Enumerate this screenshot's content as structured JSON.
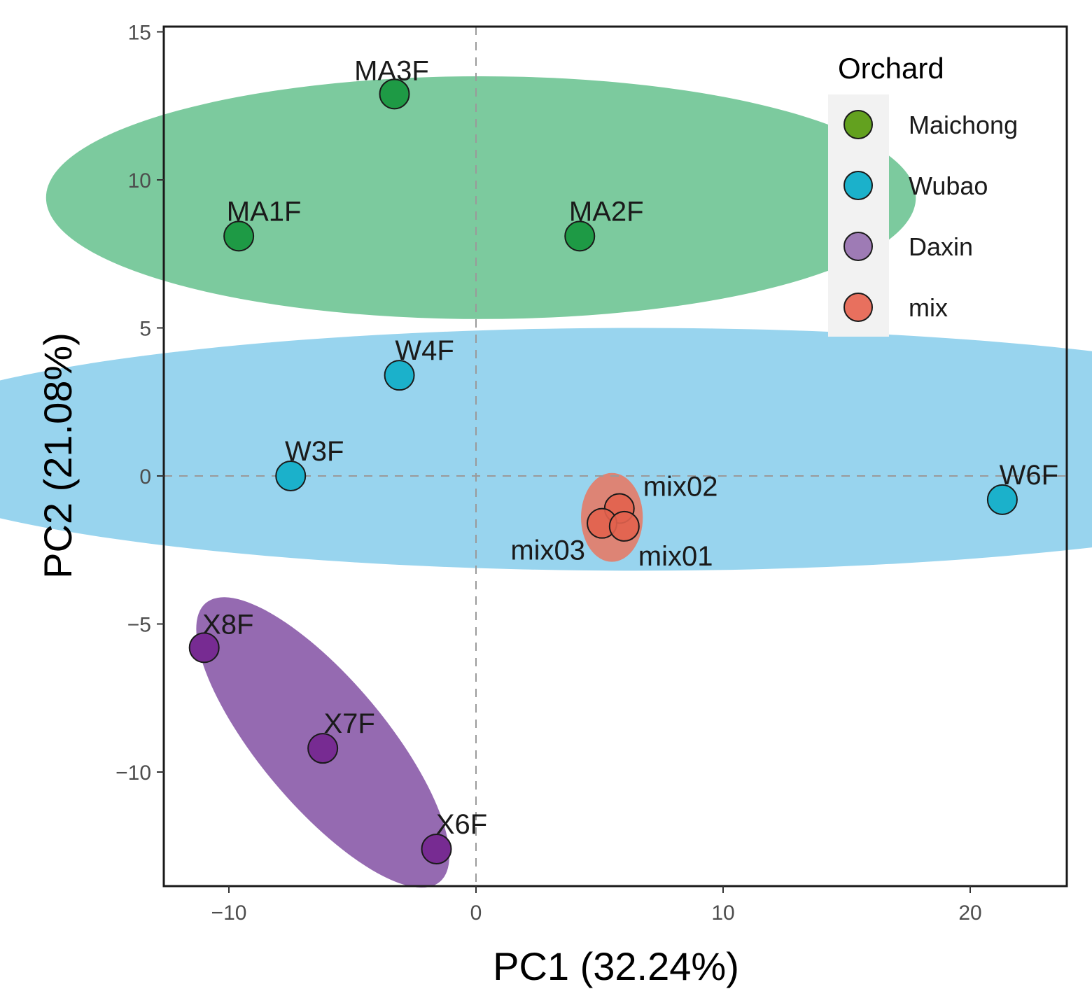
{
  "chart_data": {
    "type": "scatter",
    "title": "",
    "xlabel": "PC1 (32.24%)",
    "ylabel": "PC2 (21.08%)",
    "xlim": [
      -12.7,
      24
    ],
    "ylim": [
      -13.7,
      15.2
    ],
    "xticks": [
      -10,
      0,
      10,
      20
    ],
    "xtick_labels": [
      "−10",
      "0",
      "10",
      "20"
    ],
    "yticks": [
      15,
      10,
      5,
      0,
      -5,
      -10
    ],
    "ytick_labels": [
      "15",
      "10",
      "5",
      "0",
      "−5",
      "−10"
    ],
    "reference_lines": {
      "x": 0,
      "y": 0,
      "style": "dashed"
    },
    "grid": false,
    "legend": {
      "title": "Orchard",
      "placement": "top-right",
      "entries": [
        "Maichong",
        "Wubao",
        "Daxin",
        "mix"
      ]
    },
    "series": [
      {
        "name": "Maichong",
        "color": "#63A11F",
        "ellipse_color": "#7CCA9E",
        "point_color": "#1E9A45",
        "points": [
          {
            "label": "MA3F",
            "x": -3.3,
            "y": 12.9
          },
          {
            "label": "MA1F",
            "x": -9.6,
            "y": 8.1
          },
          {
            "label": "MA2F",
            "x": 4.2,
            "y": 8.1
          }
        ]
      },
      {
        "name": "Wubao",
        "color": "#1BB1CB",
        "ellipse_color": "#98D4EE",
        "point_color": "#1BB1CB",
        "points": [
          {
            "label": "W4F",
            "x": -3.1,
            "y": 3.4
          },
          {
            "label": "W3F",
            "x": -7.5,
            "y": 0.0
          },
          {
            "label": "W6F",
            "x": 21.3,
            "y": -0.8
          }
        ]
      },
      {
        "name": "Daxin",
        "color": "#9E7BB5",
        "ellipse_color": "#956AB1",
        "point_color": "#772B92",
        "points": [
          {
            "label": "X8F",
            "x": -11.0,
            "y": -5.8
          },
          {
            "label": "X7F",
            "x": -6.2,
            "y": -9.2
          },
          {
            "label": "X6F",
            "x": -1.6,
            "y": -12.6
          }
        ]
      },
      {
        "name": "mix",
        "color": "#E8705E",
        "ellipse_color": "#E0806E",
        "point_color": "#E2624E",
        "points": [
          {
            "label": "mix02",
            "x": 5.8,
            "y": -1.1
          },
          {
            "label": "mix03",
            "x": 5.1,
            "y": -1.6
          },
          {
            "label": "mix01",
            "x": 6.0,
            "y": -1.7
          }
        ]
      }
    ]
  }
}
